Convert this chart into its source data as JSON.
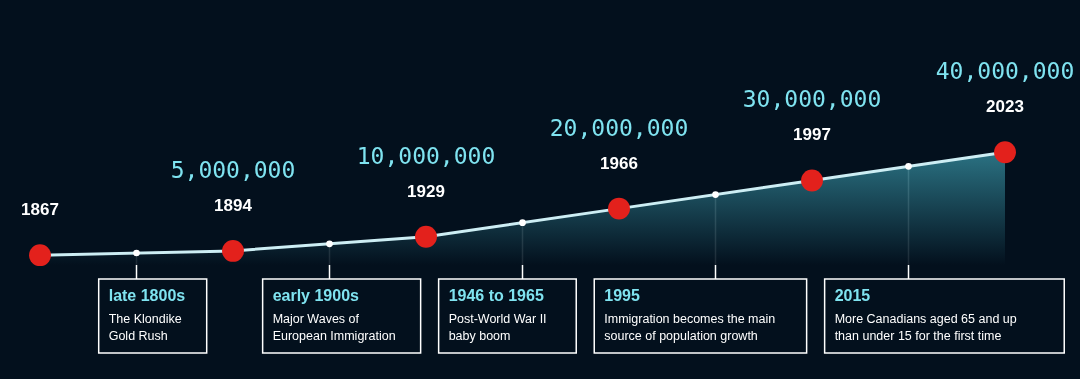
{
  "chart_data": {
    "type": "area",
    "categories": [
      "1867",
      "1894",
      "1929",
      "1966",
      "1997",
      "2023"
    ],
    "ylim": [
      0,
      94000000
    ],
    "tick_labels": "x",
    "series": [
      {
        "color": "#cdeef4",
        "values": [
          3500000,
          5000000,
          10000000,
          20000000,
          30000000,
          40000000
        ]
      },
      {
        "type": "scatter",
        "color": "#e3211c",
        "values": [
          3500000,
          5000000,
          10000000,
          20000000,
          30000000,
          40000000
        ],
        "value_labels": [
          null,
          "5,000,000",
          "10,000,000",
          "20,000,000",
          "30,000,000",
          "40,000,000"
        ]
      }
    ],
    "annotations": [
      "late 1800s\nThe Klondike\nGold Rush",
      "early 1900s\nMajor Waves of\nEuropean Immigration",
      "1946 to 1965\nPost-World War II\nbaby boom",
      "1995\nImmigration becomes the main\nsource of population growth",
      "2015\nMore Canadians aged 65 and up\nthan under 15 for the first time"
    ]
  }
}
